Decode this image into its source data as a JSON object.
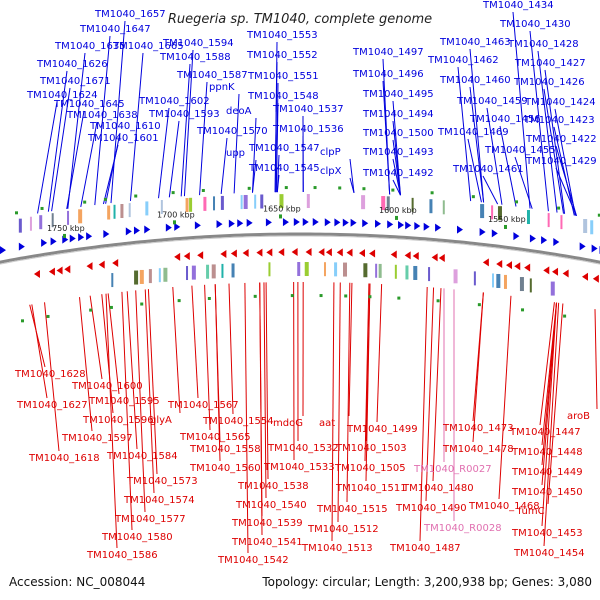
{
  "title": "Ruegeria sp. TM1040, complete genome",
  "footer": {
    "accession": "Accession: NC_008044",
    "summary": "Topology: circular; Length: 3,200,938 bp; Genes: 3,080"
  },
  "colors": {
    "forward": "#0000dd",
    "reverse": "#dd0000",
    "rna": "#e070b0",
    "backbone": "#888888"
  },
  "kbp_labels": [
    "1750 kbp",
    "1700 kbp",
    "1650 kbp",
    "1600 kbp",
    "1550 kbp"
  ],
  "top_labels": [
    "TM1040_1657",
    "TM1040_1647",
    "TM1040_1635",
    "TM1040_1626",
    "TM1040_1671",
    "TM1040_1665",
    "TM1040_1624",
    "TM1040_1645",
    "TM1040_1638",
    "TM1040_1610",
    "TM1040_1601",
    "TM1040_1594",
    "TM1040_1588",
    "TM1040_1587",
    "ppnK",
    "TM1040_1602",
    "TM1040_1593",
    "deoA",
    "TM1040_1570",
    "upp",
    "TM1040_1553",
    "TM1040_1552",
    "TM1040_1551",
    "TM1040_1548",
    "TM1040_1537",
    "TM1040_1536",
    "TM1040_1547",
    "TM1040_1545",
    "clpP",
    "clpX",
    "TM1040_1497",
    "TM1040_1496",
    "TM1040_1495",
    "TM1040_1494",
    "TM1040_1500",
    "TM1040_1493",
    "TM1040_1492",
    "TM1040_1463",
    "TM1040_1462",
    "TM1040_1460",
    "TM1040_1459",
    "TM1040_1456",
    "TM1040_1469",
    "TM1040_1455",
    "TM1040_1461",
    "TM1040_1434",
    "TM1040_1430",
    "TM1040_1428",
    "TM1040_1427",
    "TM1040_1426",
    "TM1040_1424",
    "TM1040_1423",
    "TM1040_1422",
    "TM1040_1429"
  ],
  "bottom_labels": [
    "TM1040_1628",
    "TM1040_1600",
    "TM1040_1627",
    "TM1040_1595",
    "TM1040_1596",
    "glyA",
    "TM1040_1597",
    "TM1040_1567",
    "TM1040_1554",
    "TM1040_1565",
    "TM1040_1558",
    "TM1040_1618",
    "TM1040_1584",
    "TM1040_1560",
    "TM1040_1573",
    "TM1040_1574",
    "TM1040_1577",
    "TM1040_1580",
    "TM1040_1586",
    "mdoG",
    "aat",
    "TM1040_1532",
    "TM1040_1533",
    "TM1040_1538",
    "TM1040_1540",
    "TM1040_1539",
    "TM1040_1541",
    "TM1040_1542",
    "TM1040_1499",
    "TM1040_1503",
    "TM1040_1505",
    "TM1040_1511",
    "TM1040_1515",
    "TM1040_1512",
    "TM1040_1513",
    "TM1040_1490",
    "TM1040_1487",
    "TM1040_1473",
    "TM1040_1478",
    "TM1040_1480",
    "TM1040_1468",
    "TM1040_1447",
    "TM1040_1448",
    "TM1040_1449",
    "TM1040_1450",
    "TM1040_1453",
    "TM1040_1454",
    "fumC",
    "aroB"
  ],
  "rna_labels": [
    "TM1040_R0027",
    "TM1040_R0028"
  ]
}
